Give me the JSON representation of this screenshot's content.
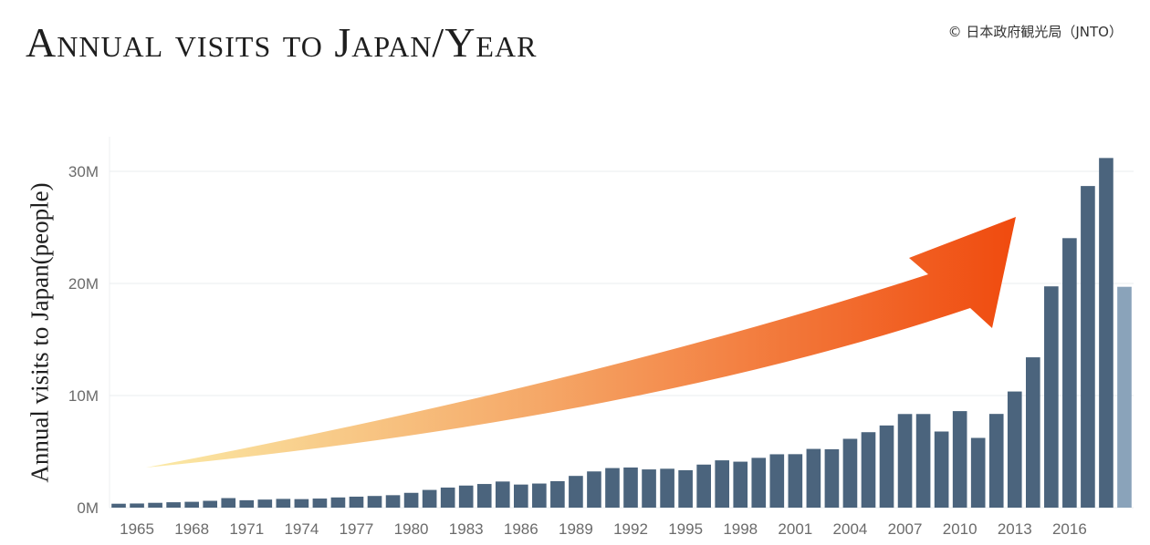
{
  "header": {
    "title": "Annual visits to Japan/Year",
    "credit": "© 日本政府観光局（JNTO）"
  },
  "chart_data": {
    "type": "bar",
    "title": "Annual visits to Japan/Year",
    "xlabel": "",
    "ylabel": "Annual visits to Japan(people)",
    "ylim": [
      0,
      32500000
    ],
    "y_ticks": [
      0,
      10000000,
      20000000,
      30000000
    ],
    "y_tick_labels": [
      "0M",
      "10M",
      "20M",
      "30M"
    ],
    "x_tick_labels": [
      "1965",
      "1968",
      "1971",
      "1974",
      "1977",
      "1980",
      "1983",
      "1986",
      "1989",
      "1992",
      "1995",
      "1998",
      "2001",
      "2004",
      "2007",
      "2010",
      "2013",
      "2016"
    ],
    "grid": true,
    "categories": [
      1964,
      1965,
      1966,
      1967,
      1968,
      1969,
      1970,
      1971,
      1972,
      1973,
      1974,
      1975,
      1976,
      1977,
      1978,
      1979,
      1980,
      1981,
      1982,
      1983,
      1984,
      1985,
      1986,
      1987,
      1988,
      1989,
      1990,
      1991,
      1992,
      1993,
      1994,
      1995,
      1996,
      1997,
      1998,
      1999,
      2000,
      2001,
      2002,
      2003,
      2004,
      2005,
      2006,
      2007,
      2008,
      2009,
      2010,
      2011,
      2012,
      2013,
      2014,
      2015,
      2016,
      2017,
      2018,
      2019
    ],
    "values": [
      350000,
      370000,
      430000,
      480000,
      520000,
      610000,
      850000,
      660000,
      720000,
      780000,
      760000,
      810000,
      910000,
      980000,
      1040000,
      1110000,
      1320000,
      1580000,
      1790000,
      1970000,
      2110000,
      2330000,
      2060000,
      2150000,
      2360000,
      2830000,
      3230000,
      3530000,
      3580000,
      3410000,
      3470000,
      3340000,
      3840000,
      4220000,
      4100000,
      4440000,
      4760000,
      4770000,
      5240000,
      5210000,
      6140000,
      6730000,
      7330000,
      8350000,
      8350000,
      6790000,
      8610000,
      6220000,
      8360000,
      10360000,
      13410000,
      19740000,
      24040000,
      28690000,
      31190000,
      19700000
    ],
    "highlight": {
      "index": 55,
      "color": "#8aa3ba"
    },
    "bar_color": "#4b647d",
    "trend_arrow": {
      "from_color": "#fbeaa6",
      "to_color": "#f04a0e"
    }
  }
}
